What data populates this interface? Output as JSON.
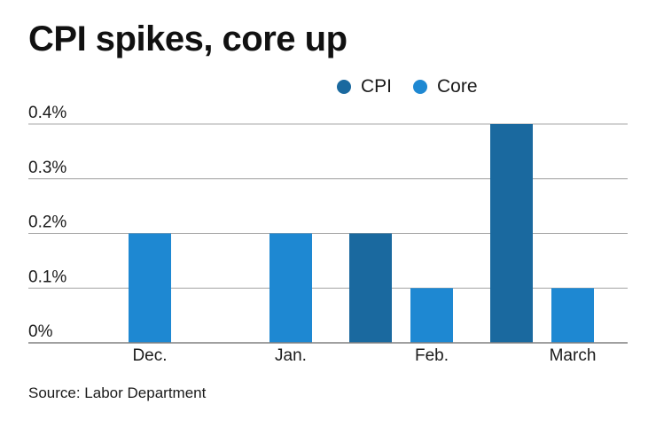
{
  "title": "CPI spikes, core up",
  "source": "Source: Labor Department",
  "colors": {
    "cpi": "#1a699f",
    "core": "#1e88d2",
    "grid": "#a6a6a6",
    "axis": "#808080"
  },
  "chart_data": {
    "type": "bar",
    "title": "CPI spikes, core up",
    "categories": [
      "Dec.",
      "Jan.",
      "Feb.",
      "March"
    ],
    "series": [
      {
        "name": "CPI",
        "values": [
          0.0,
          0.0,
          0.2,
          0.4
        ]
      },
      {
        "name": "Core",
        "values": [
          0.2,
          0.2,
          0.1,
          0.1
        ]
      }
    ],
    "yticks": [
      0,
      0.1,
      0.2,
      0.3,
      0.4
    ],
    "ytick_labels": [
      "0%",
      "0.1%",
      "0.2%",
      "0.3%",
      "0.4%"
    ],
    "ylim": [
      0,
      0.4
    ],
    "xlabel": "",
    "ylabel": "",
    "grid": true,
    "legend_position": "top"
  }
}
